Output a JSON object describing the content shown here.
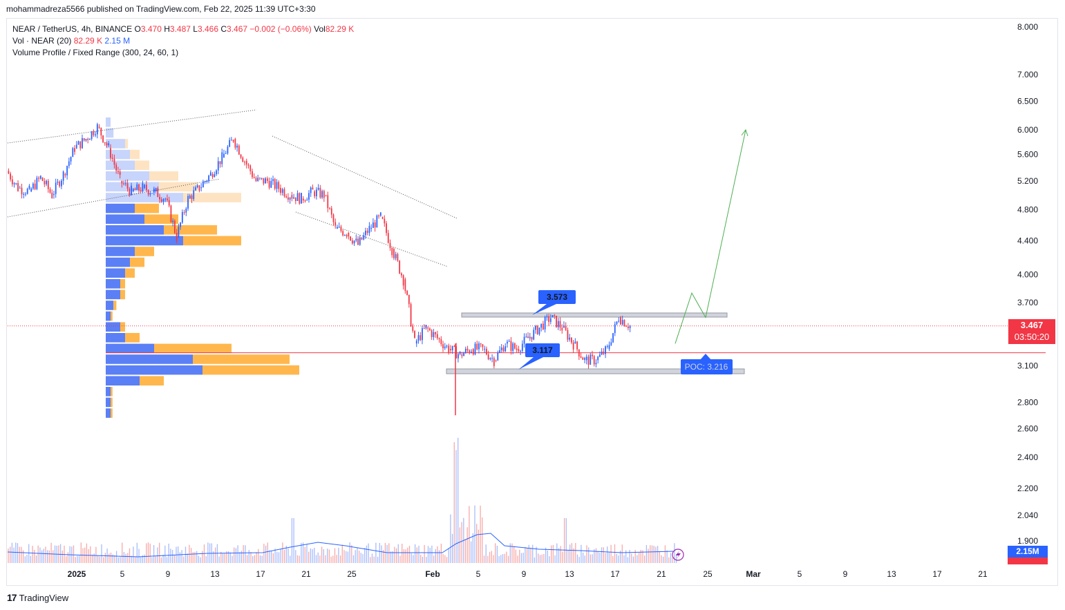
{
  "header": {
    "publisher": "mohammadreza5566 published on TradingView.com, Feb 22, 2025 11:39 UTC+3:30"
  },
  "legend": {
    "symbol": "NEAR / TetherUS, 4h, BINANCE",
    "open_label": "O",
    "open": "3.470",
    "high_label": "H",
    "high": "3.487",
    "low_label": "L",
    "low": "3.466",
    "close_label": "C",
    "close": "3.467",
    "change": "−0.002 (−0.06%)",
    "vol_label": "Vol",
    "vol": "82.29 K",
    "volume_indicator": "Vol · NEAR (20)",
    "volume_value": "82.29 K",
    "volume_ma": "2.15 M",
    "profile_indicator": "Volume Profile / Fixed Range (300, 24, 60, 1)"
  },
  "price_scale": {
    "current_price": "3.467",
    "countdown": "03:50:20",
    "volume_ma_tag": "2.15M"
  },
  "annotations": {
    "resistance_label": "3.573",
    "support_label": "3.117",
    "poc_label": "POC: 3.216"
  },
  "footer": {
    "brand": "TradingView"
  },
  "colors": {
    "up": "#2962ff",
    "down": "#f23645",
    "profile_up": "#5b7ff5",
    "profile_down": "#ffb74d",
    "projection": "#4caf50",
    "poc_line": "#f23645"
  },
  "chart_data": {
    "type": "candlestick",
    "symbol": "NEAR / TetherUS",
    "timeframe": "4h",
    "y_scale": "log",
    "ylim": [
      1.9,
      8.0
    ],
    "y_ticks": [
      "8.000",
      "7.000",
      "6.500",
      "6.000",
      "5.600",
      "5.200",
      "4.800",
      "4.400",
      "4.000",
      "3.700",
      "3.100",
      "2.800",
      "2.600",
      "2.400",
      "2.200",
      "2.040",
      "1.900"
    ],
    "x_ticks": [
      "2025",
      "5",
      "9",
      "13",
      "17",
      "21",
      "25",
      "Feb",
      "5",
      "9",
      "13",
      "17",
      "21",
      "25",
      "Mar",
      "5",
      "9",
      "13",
      "17",
      "21"
    ],
    "price_path": [
      [
        "Dec 29",
        5.35
      ],
      [
        "Dec 30",
        5.1
      ],
      [
        "Dec 31",
        5.05
      ],
      [
        "Jan 1",
        5.25
      ],
      [
        "Jan 2",
        5.0
      ],
      [
        "Jan 3",
        5.3
      ],
      [
        "Jan 4",
        5.7
      ],
      [
        "Jan 5",
        5.85
      ],
      [
        "Jan 6",
        6.05
      ],
      [
        "Jan 7",
        5.7
      ],
      [
        "Jan 8",
        5.2
      ],
      [
        "Jan 9",
        5.05
      ],
      [
        "Jan 10",
        5.1
      ],
      [
        "Jan 11",
        5.05
      ],
      [
        "Jan 12",
        4.95
      ],
      [
        "Jan 13",
        4.45
      ],
      [
        "Jan 14",
        4.95
      ],
      [
        "Jan 15",
        5.1
      ],
      [
        "Jan 16",
        5.3
      ],
      [
        "Jan 17",
        5.55
      ],
      [
        "Jan 18",
        5.85
      ],
      [
        "Jan 19",
        5.5
      ],
      [
        "Jan 20",
        5.2
      ],
      [
        "Jan 21",
        5.2
      ],
      [
        "Jan 22",
        5.1
      ],
      [
        "Jan 23",
        5.0
      ],
      [
        "Jan 24",
        4.95
      ],
      [
        "Jan 25",
        5.05
      ],
      [
        "Jan 26",
        5.0
      ],
      [
        "Jan 27",
        4.55
      ],
      [
        "Jan 28",
        4.5
      ],
      [
        "Jan 29",
        4.35
      ],
      [
        "Jan 30",
        4.55
      ],
      [
        "Jan 31",
        4.7
      ],
      [
        "Feb 1",
        4.3
      ],
      [
        "Feb 2",
        3.95
      ],
      [
        "Feb 3",
        3.3
      ],
      [
        "Feb 4",
        3.45
      ],
      [
        "Feb 5",
        3.35
      ],
      [
        "Feb 6",
        3.25
      ],
      [
        "Feb 7",
        3.2
      ],
      [
        "Feb 8",
        3.25
      ],
      [
        "Feb 9",
        3.25
      ],
      [
        "Feb 10",
        3.15
      ],
      [
        "Feb 11",
        3.3
      ],
      [
        "Feb 12",
        3.25
      ],
      [
        "Feb 13",
        3.35
      ],
      [
        "Feb 14",
        3.45
      ],
      [
        "Feb 15",
        3.55
      ],
      [
        "Feb 16",
        3.45
      ],
      [
        "Feb 17",
        3.3
      ],
      [
        "Feb 18",
        3.15
      ],
      [
        "Feb 19",
        3.15
      ],
      [
        "Feb 20",
        3.25
      ],
      [
        "Feb 21",
        3.55
      ],
      [
        "Feb 22",
        3.467
      ]
    ],
    "spike_low": 2.7,
    "levels": {
      "resistance": 3.573,
      "support": 3.117,
      "poc": 3.216,
      "current": 3.467
    },
    "projection": [
      3.3,
      3.8,
      3.55,
      6.0
    ],
    "volume_profile_up": [
      0.05,
      0.08,
      0.2,
      0.25,
      0.3,
      0.45,
      0.55,
      0.8,
      0.3,
      0.4,
      0.6,
      0.8,
      0.3,
      0.25,
      0.2,
      0.15,
      0.15,
      0.08,
      0.05,
      0.15,
      0.2,
      0.5,
      0.9,
      1.0,
      0.35,
      0.05,
      0.05,
      0.05
    ],
    "volume_profile_down": [
      0.0,
      0.0,
      0.03,
      0.1,
      0.15,
      0.3,
      0.4,
      0.6,
      0.25,
      0.35,
      0.55,
      0.6,
      0.2,
      0.15,
      0.1,
      0.05,
      0.05,
      0.03,
      0.02,
      0.05,
      0.15,
      0.8,
      1.0,
      1.0,
      0.25,
      0.02,
      0.02,
      0.02
    ]
  }
}
